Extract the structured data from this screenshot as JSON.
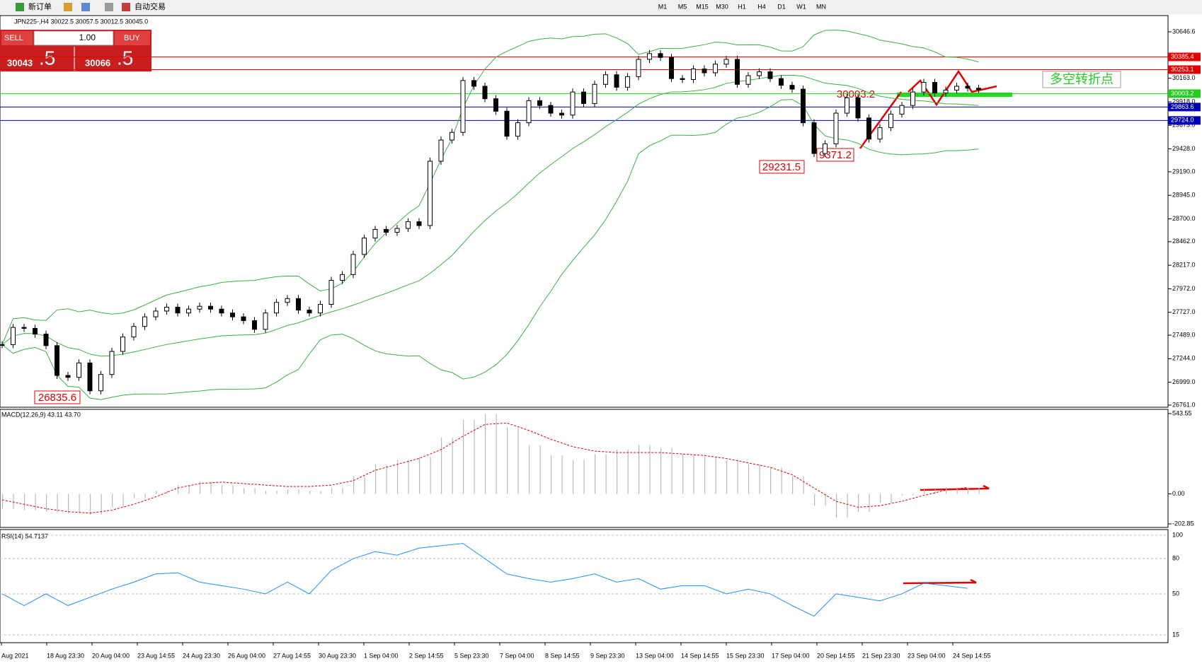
{
  "toolbar": {
    "new_order": "新订单",
    "auto_trading": "自动交易",
    "timeframes": [
      "M1",
      "M5",
      "M15",
      "M30",
      "H1",
      "H4",
      "D1",
      "W1",
      "MN"
    ]
  },
  "trade_panel": {
    "sell": "SELL",
    "buy": "BUY",
    "volume": "1.00",
    "sell_big": "30043",
    "sell_small": ".5",
    "buy_big": "30066",
    "buy_small": ".5"
  },
  "chart": {
    "symbol_info": "JPN225-,H4  30022.5 30057.5 30012.5 30045.0",
    "ylim": [
      26761,
      30646.6
    ],
    "yticks": [
      30646.6,
      {
        "value": 30163,
        "label": "30163.0"
      },
      {
        "value": 29918,
        "label": "29918.0"
      },
      {
        "value": 29673,
        "label": "29673.0"
      },
      {
        "value": 29428,
        "label": "29428.0"
      },
      {
        "value": 29190,
        "label": "29190.0"
      },
      {
        "value": 28945,
        "label": "28945.0"
      },
      {
        "value": 28700,
        "label": "28700.0"
      },
      {
        "value": 28462,
        "label": "28462.0"
      },
      {
        "value": 28217,
        "label": "28217.0"
      },
      {
        "value": 27972,
        "label": "27972.0"
      },
      {
        "value": 27727,
        "label": "27727.0"
      },
      {
        "value": 27489,
        "label": "27489.0"
      },
      {
        "value": 27244,
        "label": "27244.0"
      },
      {
        "value": 26999,
        "label": "26999.0"
      },
      {
        "value": 26761,
        "label": "26761.0"
      }
    ],
    "levels": [
      {
        "value": 30385.4,
        "color": "#e00000"
      },
      {
        "value": 30253.1,
        "color": "#e00000"
      },
      {
        "value": 30003.2,
        "color": "#22cc22"
      },
      {
        "value": 29863.6,
        "color": "#0000b0"
      },
      {
        "value": 29724,
        "color": "#0000b0",
        "label": "29724.0"
      }
    ],
    "closes": [
      27390,
      27570,
      27560,
      27500,
      27380,
      27070,
      27050,
      27200,
      26910,
      27080,
      27320,
      27470,
      27580,
      27680,
      27740,
      27780,
      27720,
      27760,
      27790,
      27760,
      27720,
      27680,
      27640,
      27550,
      27720,
      27830,
      27870,
      27750,
      27720,
      27810,
      28060,
      28120,
      28330,
      28500,
      28590,
      28560,
      28600,
      28670,
      28630,
      29300,
      29520,
      29600,
      30140,
      30080,
      29950,
      29820,
      29560,
      29700,
      29930,
      29880,
      29800,
      29780,
      30020,
      29900,
      30100,
      30200,
      30070,
      30180,
      30360,
      30420,
      30380,
      30160,
      30150,
      30260,
      30220,
      30310,
      30360,
      30100,
      30190,
      30230,
      30160,
      30090,
      30050,
      29700,
      29380,
      29480,
      29800,
      29960,
      29750,
      29530,
      29650,
      29790,
      29880,
      30020,
      30120,
      30010,
      30040,
      30080,
      30060,
      30045
    ],
    "annotations": [
      "26835.6",
      "29231.5",
      "9371.2",
      "30003.2",
      "多空转折点"
    ],
    "time_labels": [
      "Aug 2021",
      "18 Aug 23:30",
      "20 Aug 04:00",
      "23 Aug 14:55",
      "24 Aug 23:30",
      "26 Aug 04:00",
      "27 Aug 14:55",
      "30 Aug 23:30",
      "1 Sep 04:00",
      "2 Sep 14:55",
      "5 Sep 23:30",
      "7 Sep 04:00",
      "8 Sep 14:55",
      "9 Sep 23:30",
      "13 Sep 04:00",
      "14 Sep 14:55",
      "15 Sep 23:30",
      "17 Sep 04:00",
      "20 Sep 14:55",
      "21 Sep 23:30",
      "23 Sep 04:00",
      "24 Sep 14:55"
    ]
  },
  "macd": {
    "label": "MACD(12,26,9) 43.11 43.70",
    "ylim": [
      -202.85,
      543.55
    ],
    "yticks": [
      543.55,
      {
        "value": 0,
        "label": "0.00"
      },
      -202.85
    ],
    "histogram": [
      -100,
      -110,
      -120,
      -130,
      -140,
      -90,
      -30,
      20,
      60,
      80,
      60,
      40,
      20,
      30,
      20,
      40,
      120,
      200,
      230,
      250,
      380,
      500,
      540,
      450,
      330,
      260,
      230,
      270,
      300,
      330,
      310,
      270,
      250,
      230,
      200,
      180,
      120,
      -80,
      -160,
      -120,
      -60,
      -10,
      30,
      45,
      43
    ],
    "signal": [
      -40,
      -70,
      -100,
      -120,
      -130,
      -110,
      -70,
      -20,
      40,
      70,
      80,
      70,
      60,
      50,
      50,
      60,
      90,
      160,
      200,
      240,
      300,
      390,
      470,
      480,
      430,
      370,
      320,
      290,
      280,
      280,
      280,
      270,
      260,
      240,
      210,
      180,
      130,
      40,
      -50,
      -90,
      -80,
      -50,
      -10,
      25,
      44
    ]
  },
  "rsi": {
    "label": "RSI(14) 54.7137",
    "ylim": [
      15,
      100
    ],
    "yticks": [
      100,
      80,
      50,
      15
    ],
    "values": [
      50,
      40,
      50,
      40,
      47,
      54,
      60,
      67,
      68,
      60,
      57,
      54,
      50,
      60,
      50,
      70,
      80,
      86,
      83,
      89,
      91,
      93,
      80,
      67,
      63,
      60,
      63,
      67,
      60,
      63,
      54,
      57,
      57,
      50,
      54,
      50,
      40,
      31,
      50,
      47,
      44,
      50,
      59,
      57,
      54.71
    ]
  }
}
